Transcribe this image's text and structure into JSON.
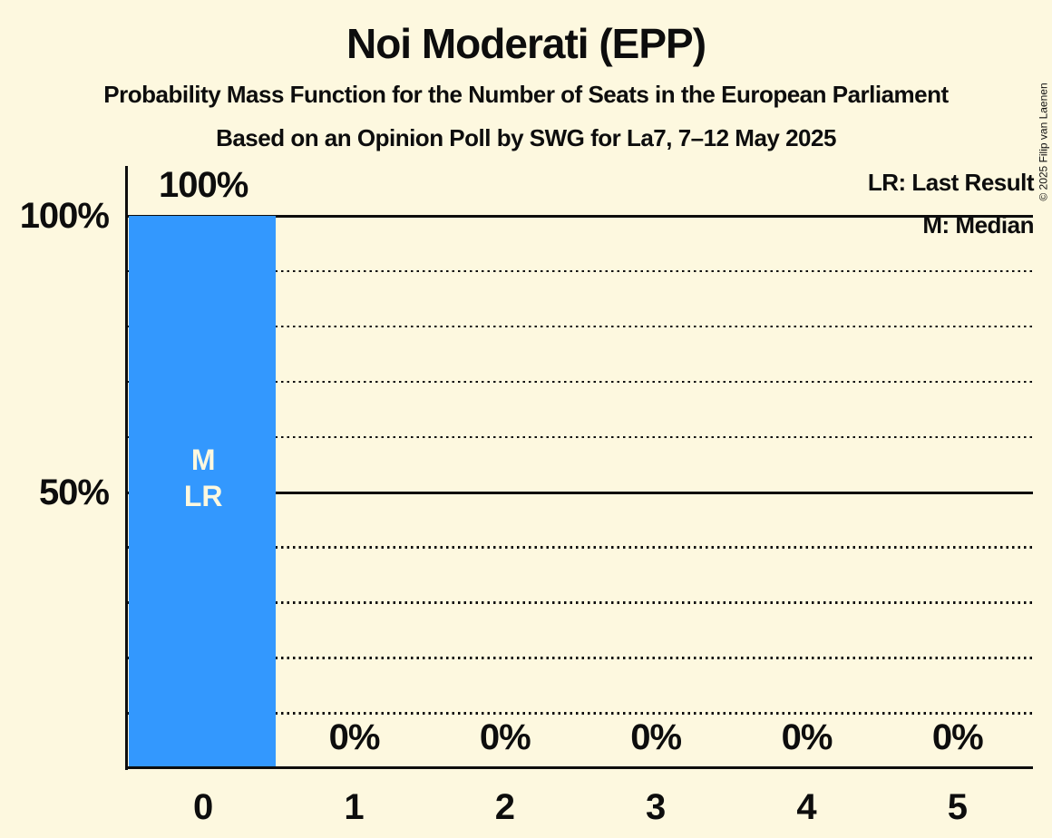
{
  "page": {
    "background_color": "#FDF8DF",
    "text_color": "#0D0D0D"
  },
  "header": {
    "title": "Noi Moderati (EPP)",
    "subtitle": "Probability Mass Function for the Number of Seats in the European Parliament",
    "poll_line": "Based on an Opinion Poll by SWG for La7, 7–12 May 2025"
  },
  "legend": {
    "last_result": "LR: Last Result",
    "median": "M: Median"
  },
  "copyright": "© 2025 Filip van Laenen",
  "chart_data": {
    "type": "bar",
    "title": "Noi Moderati (EPP)",
    "xlabel": "",
    "ylabel": "",
    "categories": [
      "0",
      "1",
      "2",
      "3",
      "4",
      "5"
    ],
    "values": [
      100,
      0,
      0,
      0,
      0,
      0
    ],
    "value_labels": [
      "100%",
      "0%",
      "0%",
      "0%",
      "0%",
      "0%"
    ],
    "ylim": [
      0,
      100
    ],
    "ytick_labels": [
      {
        "value": 100,
        "label": "100%"
      },
      {
        "value": 50,
        "label": "50%"
      }
    ],
    "gridlines": [
      {
        "value": 10,
        "style": "dotted"
      },
      {
        "value": 20,
        "style": "dotted"
      },
      {
        "value": 30,
        "style": "dotted"
      },
      {
        "value": 40,
        "style": "dotted"
      },
      {
        "value": 50,
        "style": "solid"
      },
      {
        "value": 60,
        "style": "dotted"
      },
      {
        "value": 70,
        "style": "dotted"
      },
      {
        "value": 80,
        "style": "dotted"
      },
      {
        "value": 90,
        "style": "dotted"
      },
      {
        "value": 100,
        "style": "solid"
      }
    ],
    "bar_annotations": [
      {
        "category_index": 0,
        "lines": [
          "M",
          "LR"
        ]
      }
    ],
    "bar_color": "#3398FE",
    "annotation_text_color": "#FDF8DF",
    "legend_position": "top-right",
    "grid": "horizontal-only"
  }
}
